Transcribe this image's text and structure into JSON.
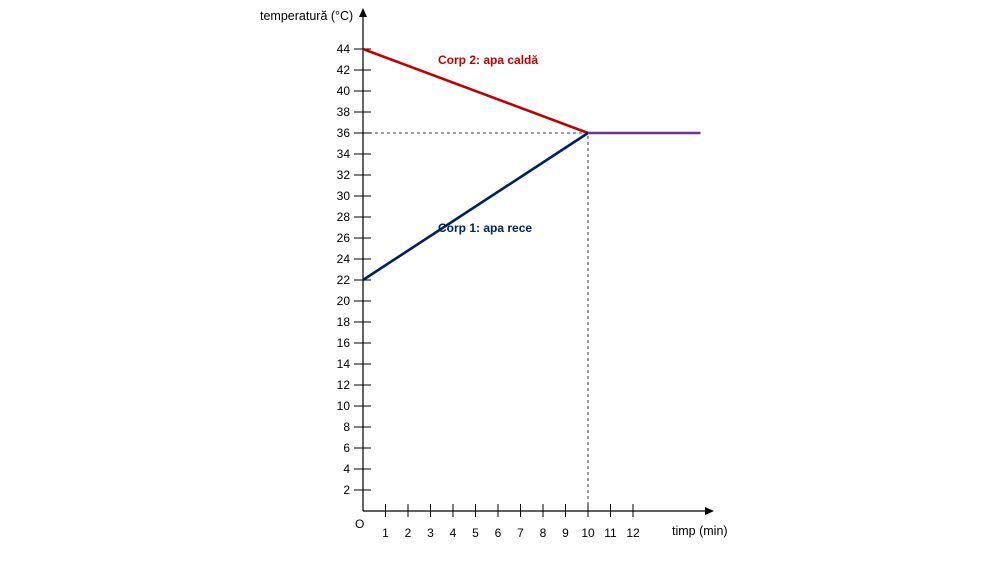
{
  "chart_data": {
    "type": "line",
    "ylabel": "temperatură (°C)",
    "xlabel": "timp (min)",
    "origin_label": "O",
    "xlim": [
      0,
      15
    ],
    "ylim": [
      0,
      45
    ],
    "x_ticks": [
      1,
      2,
      3,
      4,
      5,
      6,
      7,
      8,
      9,
      10,
      11,
      12
    ],
    "y_ticks": [
      2,
      4,
      6,
      8,
      10,
      12,
      14,
      16,
      18,
      20,
      22,
      24,
      26,
      28,
      30,
      32,
      34,
      36,
      38,
      40,
      42,
      44
    ],
    "grid": false,
    "series": [
      {
        "name": "Corp 2: apa caldă",
        "color": "#c00000",
        "points": [
          [
            0,
            44
          ],
          [
            10,
            36
          ]
        ]
      },
      {
        "name": "Corp 1: apa rece",
        "color": "#002060",
        "points": [
          [
            0,
            22
          ],
          [
            10,
            36
          ]
        ]
      },
      {
        "name": "",
        "color": "#7030a0",
        "points": [
          [
            10,
            36
          ],
          [
            15,
            36
          ]
        ]
      }
    ],
    "reference_lines": [
      {
        "type": "horizontal",
        "y": 36,
        "x_from": 0,
        "x_to": 10,
        "style": "dashed"
      },
      {
        "type": "vertical",
        "x": 10,
        "y_from": 0,
        "y_to": 36,
        "style": "dashed"
      }
    ]
  }
}
